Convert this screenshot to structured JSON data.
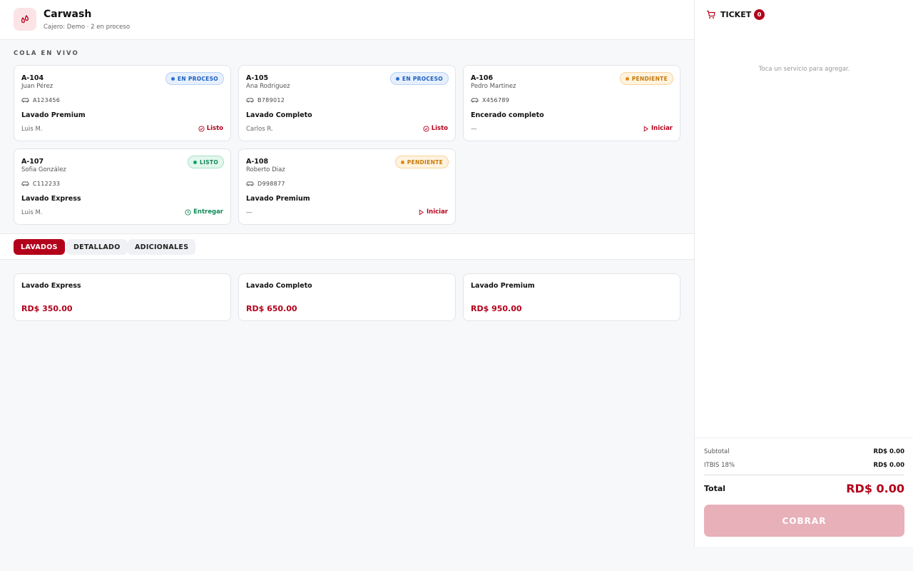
{
  "header": {
    "title": "Carwash",
    "subtitle": "Cajero: Demo · 2 en proceso"
  },
  "queue": {
    "title": "COLA EN VIVO",
    "cards": [
      {
        "id": "A-104",
        "customer": "Juan Pérez",
        "plate": "A123456",
        "service": "Lavado Premium",
        "staff": "Luis M.",
        "status": "EN PROCESO",
        "action": "Listo"
      },
      {
        "id": "A-105",
        "customer": "Ana Rodriguez",
        "plate": "B789012",
        "service": "Lavado Completo",
        "staff": "Carlos R.",
        "status": "EN PROCESO",
        "action": "Listo"
      },
      {
        "id": "A-106",
        "customer": "Pedro Martinez",
        "plate": "X456789",
        "service": "Encerado completo",
        "staff": "—",
        "status": "PENDIENTE",
        "action": "Iniciar"
      },
      {
        "id": "A-107",
        "customer": "Sofia González",
        "plate": "C112233",
        "service": "Lavado Express",
        "staff": "Luis M.",
        "status": "LISTO",
        "action": "Entregar"
      },
      {
        "id": "A-108",
        "customer": "Roberto Diaz",
        "plate": "D998877",
        "service": "Lavado Premium",
        "staff": "—",
        "status": "PENDIENTE",
        "action": "Iniciar"
      }
    ]
  },
  "tabs": [
    "LAVADOS",
    "DETALLADO",
    "ADICIONALES"
  ],
  "services": [
    {
      "name": "Lavado Express",
      "price": "RD$ 350.00"
    },
    {
      "name": "Lavado Completo",
      "price": "RD$ 650.00"
    },
    {
      "name": "Lavado Premium",
      "price": "RD$ 950.00"
    }
  ],
  "ticket": {
    "title": "TICKET",
    "count": 0,
    "empty": "Toca un servicio para agregar.",
    "subtotal_label": "Subtotal",
    "subtotal": "RD$ 0.00",
    "tax_label": "ITBIS 18%",
    "tax": "RD$ 0.00",
    "total_label": "Total",
    "total": "RD$ 0.00",
    "button": "COBRAR"
  }
}
